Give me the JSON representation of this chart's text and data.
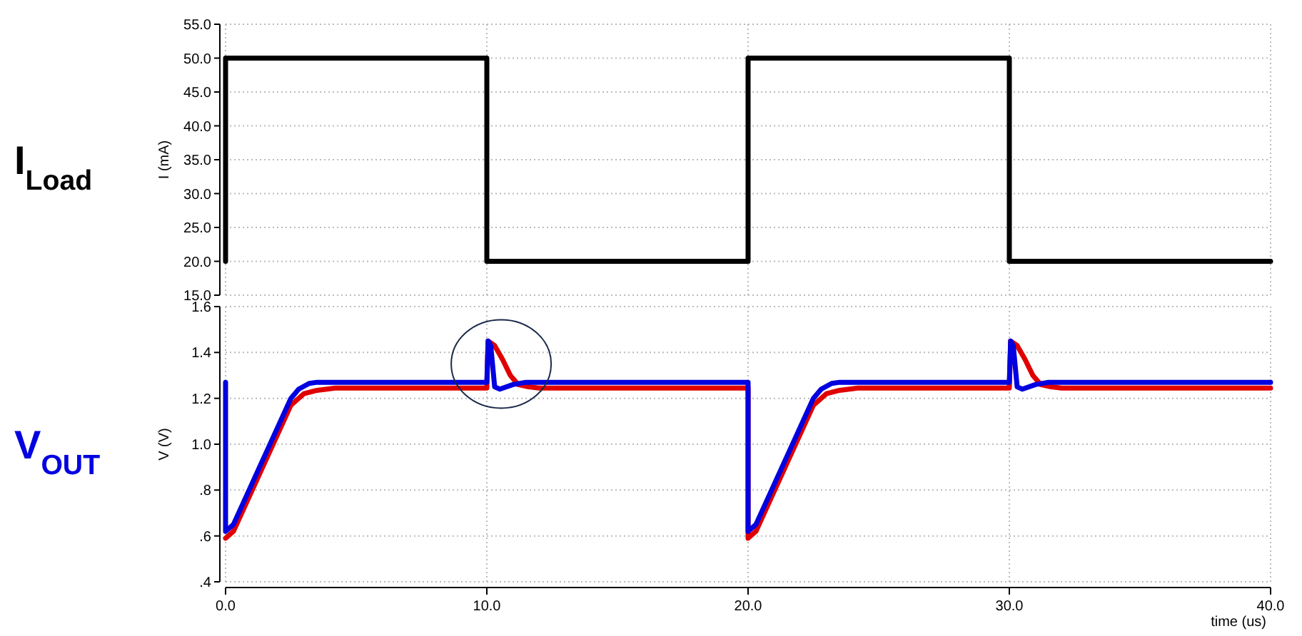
{
  "chart_data": [
    {
      "type": "line",
      "title": "I$_{Load}$",
      "ylabel": "I (mA)",
      "xlim": [
        0,
        40
      ],
      "xticks": [
        {
          "value": 0,
          "label": null
        },
        {
          "value": 10,
          "label": null
        },
        {
          "value": 20,
          "label": null
        },
        {
          "value": 30,
          "label": null
        },
        {
          "value": 40,
          "label": null
        }
      ],
      "ylim": [
        15,
        55
      ],
      "yticks": [
        {
          "value": 15,
          "label": "15.0"
        },
        {
          "value": 20,
          "label": "20.0"
        },
        {
          "value": 25,
          "label": "25.0"
        },
        {
          "value": 30,
          "label": "30.0"
        },
        {
          "value": 35,
          "label": "35.0"
        },
        {
          "value": 40,
          "label": "40.0"
        },
        {
          "value": 45,
          "label": "45.0"
        },
        {
          "value": 50,
          "label": "50.0"
        },
        {
          "value": 55,
          "label": "55.0"
        }
      ],
      "grid": true,
      "tick_labels": "y",
      "series": [
        {
          "color": "#000000",
          "x": [
            0,
            0,
            10,
            10,
            20,
            20,
            20,
            30,
            30,
            40
          ],
          "values": [
            20,
            50,
            50,
            20,
            20,
            24,
            50,
            50,
            20,
            20
          ]
        }
      ]
    },
    {
      "type": "line",
      "title": "V$_{OUT}$",
      "xlabel": "time (us)",
      "ylabel": "V (V)",
      "xlim": [
        0,
        40
      ],
      "xticks": [
        {
          "value": 0,
          "label": "0.0"
        },
        {
          "value": 10,
          "label": "10.0"
        },
        {
          "value": 20,
          "label": "20.0"
        },
        {
          "value": 30,
          "label": "30.0"
        },
        {
          "value": 40,
          "label": "40.0"
        }
      ],
      "ylim": [
        0.4,
        1.6
      ],
      "yticks": [
        {
          "value": 0.4,
          "label": ".4"
        },
        {
          "value": 0.6,
          "label": ".6"
        },
        {
          "value": 0.8,
          "label": ".8"
        },
        {
          "value": 1.0,
          "label": "1.0"
        },
        {
          "value": 1.2,
          "label": "1.2"
        },
        {
          "value": 1.4,
          "label": "1.4"
        },
        {
          "value": 1.6,
          "label": "1.6"
        }
      ],
      "grid": true,
      "series": [
        {
          "color": "#e00000",
          "x": [
            0,
            0.3,
            2.5,
            3,
            3.5,
            4.2,
            10,
            10.05,
            10.3,
            10.6,
            10.9,
            11.2,
            11.6,
            12,
            20,
            20,
            20.3,
            22.5,
            23,
            23.5,
            24.2,
            30,
            30.05,
            30.3,
            30.6,
            30.9,
            31.2,
            31.6,
            32,
            40
          ],
          "values": [
            0.59,
            0.62,
            1.17,
            1.22,
            1.235,
            1.245,
            1.245,
            1.45,
            1.43,
            1.37,
            1.3,
            1.26,
            1.25,
            1.245,
            1.245,
            0.59,
            0.62,
            1.17,
            1.22,
            1.235,
            1.245,
            1.245,
            1.45,
            1.43,
            1.37,
            1.3,
            1.26,
            1.25,
            1.245,
            1.245
          ]
        },
        {
          "color": "#0000e0",
          "x": [
            0,
            0,
            0.3,
            2.5,
            2.8,
            3.2,
            3.5,
            10,
            10.05,
            10.15,
            10.3,
            10.5,
            11,
            11.5,
            20,
            20,
            20.3,
            22.5,
            22.8,
            23.2,
            23.5,
            30,
            30.05,
            30.15,
            30.3,
            30.5,
            31,
            31.5,
            40
          ],
          "values": [
            1.27,
            0.62,
            0.65,
            1.2,
            1.24,
            1.265,
            1.27,
            1.27,
            1.45,
            1.43,
            1.25,
            1.24,
            1.26,
            1.27,
            1.27,
            0.62,
            0.65,
            1.2,
            1.24,
            1.265,
            1.27,
            1.27,
            1.45,
            1.43,
            1.25,
            1.24,
            1.26,
            1.27,
            1.27
          ]
        }
      ]
    }
  ]
}
